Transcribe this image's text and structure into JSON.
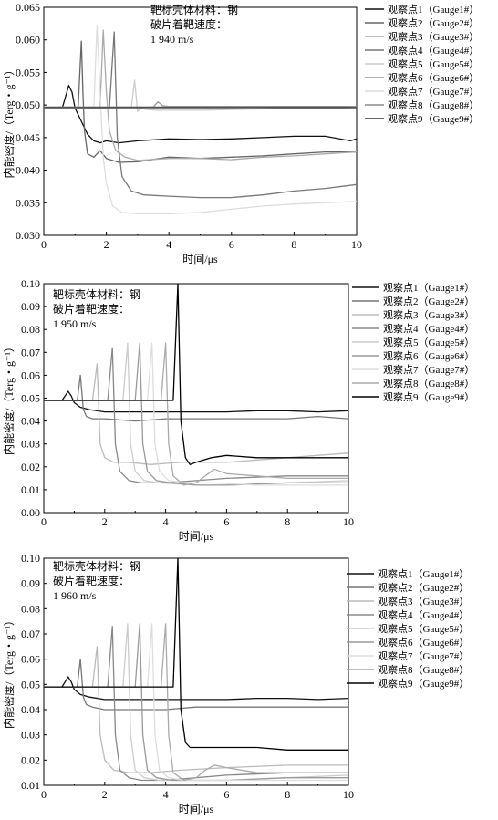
{
  "chart_data": [
    {
      "type": "line",
      "annotation": [
        "靶标壳体材料：钢",
        "破片着靶速度：",
        "1 940 m/s"
      ],
      "xlabel": "时间/μs",
      "ylabel": "内能密度/（Terg・g⁻¹）",
      "xlim": [
        0,
        10
      ],
      "ylim": [
        0.03,
        0.065
      ],
      "xticks": [
        "0",
        "2",
        "4",
        "6",
        "8",
        "10"
      ],
      "yticks": [
        "0.030",
        "0.035",
        "0.040",
        "0.045",
        "0.050",
        "0.055",
        "0.060",
        "0.065"
      ],
      "legend_position": "right",
      "series": [
        {
          "name": "观察点1（Gauge1#）",
          "color": "#111111",
          "x": [
            0,
            0.6,
            0.8,
            0.9,
            1.0,
            1.2,
            1.4,
            1.6,
            1.8,
            2.0,
            2.4,
            3,
            4,
            5,
            6,
            7,
            8,
            9,
            9.8,
            10
          ],
          "y": [
            0.0495,
            0.0497,
            0.053,
            0.052,
            0.0495,
            0.0475,
            0.0455,
            0.0445,
            0.0442,
            0.0445,
            0.0442,
            0.0445,
            0.0448,
            0.0447,
            0.0448,
            0.045,
            0.0452,
            0.0452,
            0.0445,
            0.0448
          ]
        },
        {
          "name": "观察点2（Gauge2#）",
          "color": "#666666",
          "x": [
            0,
            1.1,
            1.2,
            1.25,
            1.3,
            1.4,
            1.6,
            1.8,
            2.0,
            2.4,
            3,
            4,
            5,
            6,
            7,
            8,
            9,
            10
          ],
          "y": [
            0.0495,
            0.0496,
            0.0598,
            0.052,
            0.046,
            0.0425,
            0.042,
            0.043,
            0.0418,
            0.0412,
            0.0413,
            0.042,
            0.0418,
            0.042,
            0.0422,
            0.0425,
            0.0428,
            0.0428
          ]
        },
        {
          "name": "观察点3（Gauge3#）",
          "color": "#aaaaaa",
          "x": [
            0,
            1.8,
            1.9,
            2.0,
            2.1,
            2.3,
            2.6,
            3,
            4,
            5,
            6,
            7,
            8,
            9,
            10
          ],
          "y": [
            0.0495,
            0.0496,
            0.0615,
            0.052,
            0.046,
            0.043,
            0.042,
            0.0415,
            0.0418,
            0.0418,
            0.0416,
            0.042,
            0.0422,
            0.0425,
            0.0428
          ]
        },
        {
          "name": "观察点4（Gauge4#）",
          "color": "#777777",
          "x": [
            0,
            2.1,
            2.25,
            2.35,
            2.5,
            2.8,
            3.2,
            4,
            5,
            6,
            7,
            8,
            9,
            10
          ],
          "y": [
            0.0495,
            0.0496,
            0.0612,
            0.045,
            0.039,
            0.0368,
            0.0362,
            0.036,
            0.0358,
            0.0358,
            0.0362,
            0.0368,
            0.0372,
            0.0378
          ]
        },
        {
          "name": "观察点5（Gauge5#）",
          "color": "#cccccc",
          "x": [
            0,
            2.8,
            2.9,
            3.0,
            3.1,
            3.3,
            3.6,
            4,
            5,
            6,
            7,
            8,
            9,
            10
          ],
          "y": [
            0.0495,
            0.0496,
            0.0538,
            0.049,
            0.0495,
            0.0493,
            0.0492,
            0.0492,
            0.0492,
            0.0493,
            0.0494,
            0.0495,
            0.0495,
            0.0496
          ]
        },
        {
          "name": "观察点6（Gauge6#）",
          "color": "#999999",
          "x": [
            0,
            3.5,
            3.65,
            3.8,
            4,
            5,
            6,
            7,
            8,
            9,
            10
          ],
          "y": [
            0.0496,
            0.0497,
            0.0505,
            0.0499,
            0.0498,
            0.0498,
            0.0498,
            0.0498,
            0.0498,
            0.0498,
            0.0498
          ]
        },
        {
          "name": "观察点7（Gauge7#）",
          "color": "#dddddd",
          "x": [
            0,
            1.6,
            1.7,
            1.8,
            1.9,
            2.0,
            2.2,
            2.5,
            3,
            4,
            5,
            6,
            7,
            8,
            9,
            10
          ],
          "y": [
            0.0495,
            0.0496,
            0.0622,
            0.052,
            0.042,
            0.038,
            0.0345,
            0.0335,
            0.0333,
            0.0333,
            0.0335,
            0.034,
            0.0345,
            0.0348,
            0.035,
            0.0352
          ]
        },
        {
          "name": "观察点8（Gauge8#）",
          "color": "#888888",
          "x": [
            0,
            10
          ],
          "y": [
            0.0497,
            0.0497
          ]
        },
        {
          "name": "观察点9（Gauge9#）",
          "color": "#333333",
          "x": [
            0,
            10
          ],
          "y": [
            0.0496,
            0.0496
          ]
        }
      ]
    },
    {
      "type": "line",
      "annotation": [
        "靶标壳体材料：钢",
        "破片着靶速度：",
        "1 950 m/s"
      ],
      "xlabel": "时间/μs",
      "ylabel": "内能密度/（Terg・g⁻¹）",
      "xlim": [
        0,
        10
      ],
      "ylim": [
        0.0,
        0.1
      ],
      "xticks": [
        "0",
        "2",
        "4",
        "6",
        "8",
        "10"
      ],
      "yticks": [
        "0.00",
        "0.01",
        "0.02",
        "0.03",
        "0.04",
        "0.05",
        "0.06",
        "0.07",
        "0.08",
        "0.09",
        "0.10"
      ],
      "legend_position": "right",
      "series": [
        {
          "name": "观察点1（Gauge1#）",
          "color": "#111111",
          "x": [
            0,
            0.6,
            0.8,
            0.9,
            1.0,
            1.2,
            1.5,
            2,
            3,
            4,
            5,
            6,
            7,
            8,
            9,
            10
          ],
          "y": [
            0.049,
            0.049,
            0.053,
            0.051,
            0.048,
            0.046,
            0.045,
            0.044,
            0.044,
            0.044,
            0.044,
            0.044,
            0.0445,
            0.0445,
            0.044,
            0.0445
          ]
        },
        {
          "name": "观察点2（Gauge2#）",
          "color": "#777777",
          "x": [
            0,
            1.1,
            1.2,
            1.3,
            1.4,
            1.6,
            2,
            3,
            4,
            5,
            6,
            7,
            8,
            9,
            10
          ],
          "y": [
            0.049,
            0.049,
            0.06,
            0.045,
            0.042,
            0.041,
            0.041,
            0.04,
            0.041,
            0.041,
            0.041,
            0.041,
            0.041,
            0.042,
            0.041
          ]
        },
        {
          "name": "观察点3（Gauge3#）",
          "color": "#bbbbbb",
          "x": [
            0,
            1.6,
            1.75,
            1.85,
            2.0,
            2.3,
            2.8,
            3.5,
            4.5,
            6,
            8,
            10
          ],
          "y": [
            0.049,
            0.049,
            0.065,
            0.03,
            0.024,
            0.022,
            0.022,
            0.021,
            0.022,
            0.022,
            0.024,
            0.026
          ]
        },
        {
          "name": "观察点4（Gauge4#）",
          "color": "#888888",
          "x": [
            0,
            2.1,
            2.25,
            2.35,
            2.5,
            2.8,
            3.2,
            4,
            5,
            6,
            8,
            10
          ],
          "y": [
            0.049,
            0.049,
            0.072,
            0.03,
            0.018,
            0.014,
            0.013,
            0.013,
            0.014,
            0.015,
            0.016,
            0.016
          ]
        },
        {
          "name": "观察点5（Gauge5#）",
          "color": "#cccccc",
          "x": [
            0,
            2.6,
            2.75,
            2.85,
            3.0,
            3.3,
            3.8,
            5,
            6,
            8,
            10
          ],
          "y": [
            0.049,
            0.049,
            0.074,
            0.03,
            0.018,
            0.014,
            0.013,
            0.012,
            0.012,
            0.013,
            0.014
          ]
        },
        {
          "name": "观察点6（Gauge6#）",
          "color": "#999999",
          "x": [
            0,
            3.0,
            3.15,
            3.25,
            3.4,
            3.7,
            4.2,
            5,
            6,
            8,
            10
          ],
          "y": [
            0.049,
            0.049,
            0.074,
            0.03,
            0.018,
            0.014,
            0.013,
            0.012,
            0.012,
            0.013,
            0.013
          ]
        },
        {
          "name": "观察点7（Gauge7#）",
          "color": "#dddddd",
          "x": [
            0,
            3.4,
            3.55,
            3.65,
            3.8,
            4.1,
            4.6,
            5.5,
            7,
            10
          ],
          "y": [
            0.049,
            0.049,
            0.074,
            0.03,
            0.018,
            0.014,
            0.013,
            0.013,
            0.012,
            0.012
          ]
        },
        {
          "name": "观察点8（Gauge8#）",
          "color": "#aaaaaa",
          "x": [
            0,
            3.85,
            4.0,
            4.1,
            4.25,
            4.6,
            5.0,
            5.3,
            5.6,
            6,
            7,
            8,
            10
          ],
          "y": [
            0.049,
            0.049,
            0.074,
            0.03,
            0.016,
            0.012,
            0.013,
            0.016,
            0.019,
            0.017,
            0.016,
            0.015,
            0.015
          ]
        },
        {
          "name": "观察点9（Gauge9#）",
          "color": "#000000",
          "x": [
            0,
            4.25,
            4.4,
            4.5,
            4.65,
            4.8,
            5.0,
            5.5,
            6,
            7,
            8,
            9,
            10
          ],
          "y": [
            0.049,
            0.049,
            0.1,
            0.04,
            0.024,
            0.021,
            0.022,
            0.024,
            0.025,
            0.024,
            0.024,
            0.024,
            0.024
          ]
        }
      ]
    },
    {
      "type": "line",
      "annotation": [
        "靶标壳体材料：钢",
        "破片着靶速度：",
        "1 960 m/s"
      ],
      "xlabel": "时间/μs",
      "ylabel": "内能密度/（Terg・g⁻¹）",
      "xlim": [
        0,
        10
      ],
      "ylim": [
        0.01,
        0.1
      ],
      "xticks": [
        "0",
        "2",
        "4",
        "6",
        "8",
        "10"
      ],
      "yticks": [
        "0.01",
        "0.02",
        "0.03",
        "0.04",
        "0.05",
        "0.06",
        "0.07",
        "0.08",
        "0.09",
        "0.10"
      ],
      "legend_position": "right",
      "series": [
        {
          "name": "观察点1（Gauge1#）",
          "color": "#111111",
          "x": [
            0,
            0.6,
            0.8,
            0.9,
            1.0,
            1.2,
            1.5,
            2,
            3,
            4,
            5,
            6,
            7,
            8,
            9,
            10
          ],
          "y": [
            0.049,
            0.049,
            0.053,
            0.051,
            0.048,
            0.046,
            0.045,
            0.044,
            0.044,
            0.044,
            0.044,
            0.044,
            0.0445,
            0.0445,
            0.044,
            0.0445
          ]
        },
        {
          "name": "观察点2（Gauge2#）",
          "color": "#777777",
          "x": [
            0,
            1.1,
            1.2,
            1.3,
            1.4,
            1.6,
            2,
            3,
            4,
            5,
            6,
            7,
            8,
            9,
            10
          ],
          "y": [
            0.049,
            0.049,
            0.06,
            0.045,
            0.042,
            0.041,
            0.04,
            0.04,
            0.04,
            0.041,
            0.041,
            0.041,
            0.041,
            0.041,
            0.041
          ]
        },
        {
          "name": "观察点3（Gauge3#）",
          "color": "#bbbbbb",
          "x": [
            0,
            1.6,
            1.75,
            1.85,
            2.0,
            2.3,
            2.8,
            3.5,
            4.5,
            6,
            8,
            10
          ],
          "y": [
            0.049,
            0.049,
            0.065,
            0.03,
            0.02,
            0.016,
            0.015,
            0.015,
            0.016,
            0.017,
            0.018,
            0.018
          ]
        },
        {
          "name": "观察点4（Gauge4#）",
          "color": "#888888",
          "x": [
            0,
            2.1,
            2.25,
            2.35,
            2.5,
            2.8,
            3.2,
            4,
            5,
            6,
            8,
            10
          ],
          "y": [
            0.049,
            0.049,
            0.073,
            0.03,
            0.016,
            0.013,
            0.012,
            0.012,
            0.013,
            0.014,
            0.015,
            0.015
          ]
        },
        {
          "name": "观察点5（Gauge5#）",
          "color": "#cccccc",
          "x": [
            0,
            2.6,
            2.75,
            2.85,
            3.0,
            3.3,
            3.8,
            5,
            6,
            8,
            10
          ],
          "y": [
            0.049,
            0.049,
            0.074,
            0.03,
            0.016,
            0.013,
            0.012,
            0.012,
            0.012,
            0.013,
            0.014
          ]
        },
        {
          "name": "观察点6（Gauge6#）",
          "color": "#999999",
          "x": [
            0,
            3.0,
            3.15,
            3.25,
            3.4,
            3.7,
            4.2,
            5,
            6,
            8,
            10
          ],
          "y": [
            0.049,
            0.049,
            0.074,
            0.03,
            0.016,
            0.013,
            0.012,
            0.012,
            0.012,
            0.013,
            0.013
          ]
        },
        {
          "name": "观察点7（Gauge7#）",
          "color": "#dddddd",
          "x": [
            0,
            3.4,
            3.55,
            3.65,
            3.8,
            4.1,
            4.6,
            5.5,
            7,
            10
          ],
          "y": [
            0.049,
            0.049,
            0.074,
            0.03,
            0.016,
            0.013,
            0.012,
            0.012,
            0.012,
            0.012
          ]
        },
        {
          "name": "观察点8（Gauge8#）",
          "color": "#aaaaaa",
          "x": [
            0,
            3.85,
            4.0,
            4.1,
            4.25,
            4.6,
            5.0,
            5.3,
            5.6,
            6,
            7,
            8,
            10
          ],
          "y": [
            0.049,
            0.049,
            0.074,
            0.03,
            0.015,
            0.012,
            0.013,
            0.016,
            0.018,
            0.017,
            0.015,
            0.015,
            0.015
          ]
        },
        {
          "name": "观察点9（Gauge9#）",
          "color": "#000000",
          "x": [
            0,
            4.25,
            4.4,
            4.5,
            4.65,
            4.8,
            5.0,
            5.5,
            6,
            7,
            8,
            9,
            10
          ],
          "y": [
            0.049,
            0.049,
            0.1,
            0.04,
            0.027,
            0.025,
            0.025,
            0.025,
            0.025,
            0.025,
            0.024,
            0.024,
            0.024
          ]
        }
      ]
    }
  ]
}
